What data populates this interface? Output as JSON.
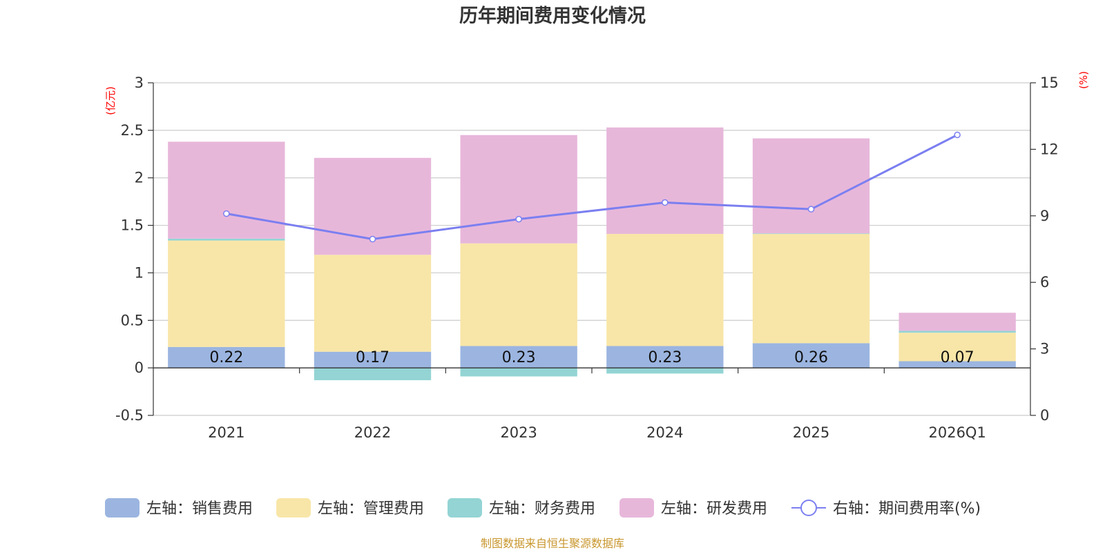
{
  "chart_data": {
    "type": "bar",
    "title": "历年期间费用变化情况",
    "categories": [
      "2021",
      "2022",
      "2023",
      "2024",
      "2025",
      "2026Q1"
    ],
    "y_left": {
      "unit": "(亿元)",
      "min": -0.5,
      "max": 3,
      "ticks": [
        "-0.5",
        "0",
        "0.5",
        "1",
        "1.5",
        "2",
        "2.5",
        "3"
      ]
    },
    "y_right": {
      "unit": "(%)",
      "min": 0,
      "max": 15,
      "ticks": [
        "0",
        "3",
        "6",
        "9",
        "12",
        "15"
      ]
    },
    "series": [
      {
        "name": "左轴：销售费用",
        "axis": "left",
        "stack": true,
        "color": "#9bb5e0",
        "values": [
          0.22,
          0.17,
          0.23,
          0.23,
          0.26,
          0.07
        ]
      },
      {
        "name": "左轴：管理费用",
        "axis": "left",
        "stack": true,
        "color": "#f8e6a8",
        "values": [
          1.12,
          1.02,
          1.08,
          1.18,
          1.15,
          0.3
        ]
      },
      {
        "name": "左轴：财务费用",
        "axis": "left",
        "stack": true,
        "color": "#94d4d4",
        "values": [
          0.02,
          -0.13,
          -0.09,
          -0.06,
          0.005,
          0.02
        ]
      },
      {
        "name": "左轴：研发费用",
        "axis": "left",
        "stack": true,
        "color": "#e7b7da",
        "values": [
          1.02,
          1.02,
          1.14,
          1.12,
          1.0,
          0.19
        ]
      },
      {
        "name": "右轴：期间费用率(%)",
        "axis": "right",
        "type": "line",
        "color": "#7b7ff0",
        "values": [
          9.1,
          7.95,
          8.85,
          9.6,
          9.3,
          12.65
        ]
      }
    ],
    "data_labels": [
      "0.22",
      "0.17",
      "0.23",
      "0.23",
      "0.26",
      "0.07"
    ],
    "legend_position": "bottom",
    "grid": true
  },
  "source_note": "制图数据来自恒生聚源数据库"
}
